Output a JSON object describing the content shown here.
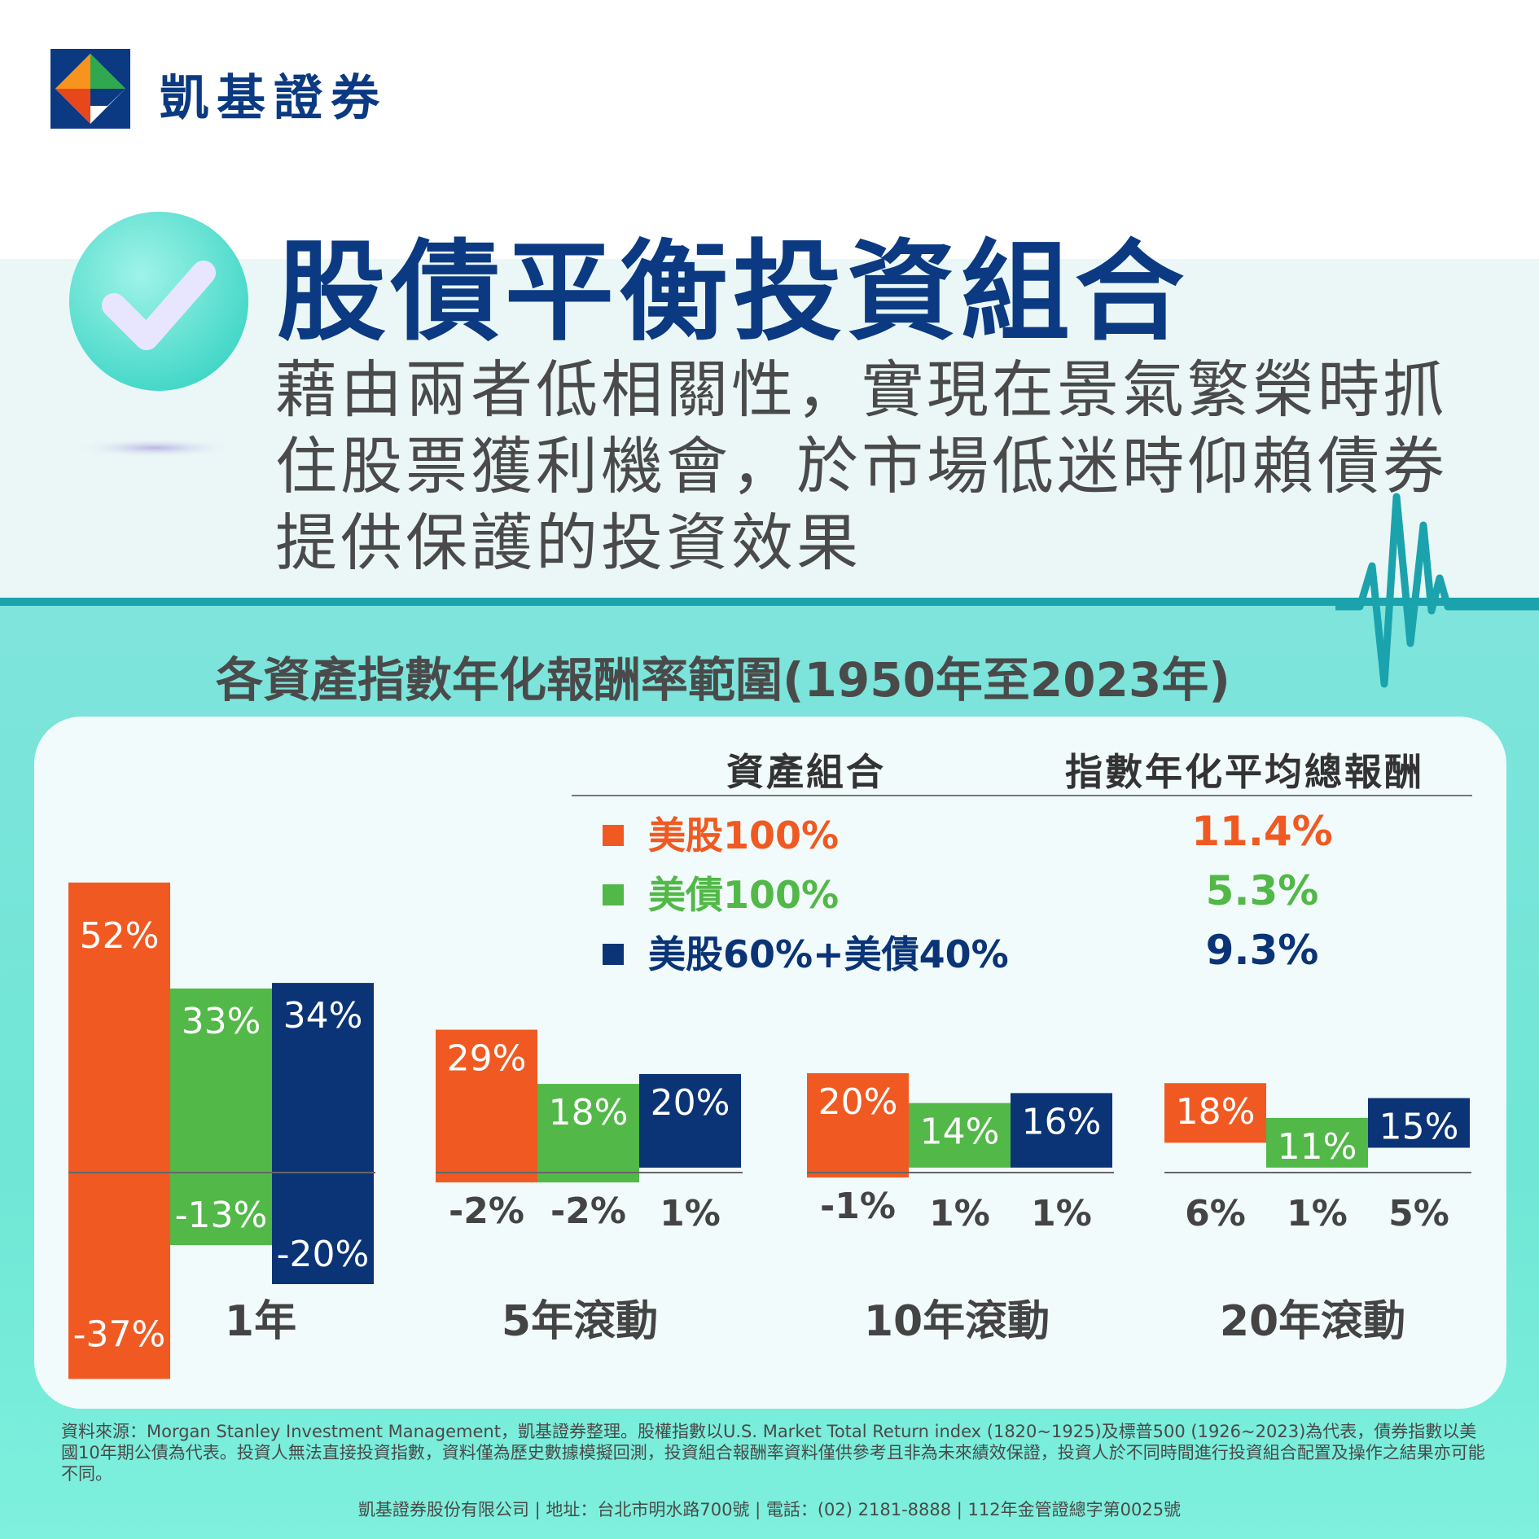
{
  "header": {
    "brand": "凱基證券",
    "title": "股債平衡投資組合",
    "subtitle": "藉由兩者低相關性，實現在景氣繁榮時抓住股票獲利機會，於市場低迷時仰賴債券提供保護的投資效果"
  },
  "legend": {
    "col_asset": "資產組合",
    "col_return": "指數年化平均總報酬",
    "rows": [
      {
        "label": "美股100%",
        "value": "11.4%",
        "color": "#f05a22"
      },
      {
        "label": "美債100%",
        "value": "5.3%",
        "color": "#52b848"
      },
      {
        "label": "美股60%+美債40%",
        "value": "9.3%",
        "color": "#0b3477"
      }
    ]
  },
  "chart_data": {
    "type": "bar",
    "title": "各資產指數年化報酬率範圍(1950年至2023年)",
    "categories": [
      "1年",
      "5年滾動",
      "10年滾動",
      "20年滾動"
    ],
    "series": [
      {
        "name": "美股100%",
        "color": "#f05a22",
        "max": [
          52,
          29,
          20,
          18
        ],
        "min": [
          -37,
          -2,
          -1,
          6
        ],
        "max_labels": [
          "52%",
          "29%",
          "20%",
          "18%"
        ],
        "min_labels": [
          "-37%",
          "-2%",
          "-1%",
          "6%"
        ]
      },
      {
        "name": "美債100%",
        "color": "#52b848",
        "max": [
          33,
          18,
          14,
          11
        ],
        "min": [
          -13,
          -2,
          1,
          1
        ],
        "max_labels": [
          "33%",
          "18%",
          "14%",
          "11%"
        ],
        "min_labels": [
          "-13%",
          "-2%",
          "1%",
          "1%"
        ]
      },
      {
        "name": "美股60%+美債40%",
        "color": "#0b3477",
        "max": [
          34,
          20,
          16,
          15
        ],
        "min": [
          -20,
          1,
          1,
          5
        ],
        "max_labels": [
          "34%",
          "20%",
          "16%",
          "15%"
        ],
        "min_labels": [
          "-20%",
          "1%",
          "1%",
          "5%"
        ]
      }
    ]
  },
  "footnote": "資料來源：Morgan Stanley Investment Management，凱基證券整理。股權指數以U.S. Market Total Return index (1820~1925)及標普500 (1926~2023)為代表，債券指數以美國10年期公債為代表。投資人無法直接投資指數，資料僅為歷史數據模擬回測，投資組合報酬率資料僅供參考且非為未來績效保證，投資人於不同時間進行投資組合配置及操作之結果亦可能不同。",
  "footer": "凱基證券股份有限公司 | 地址：台北市明水路700號 | 電話：(02) 2181-8888 | 112年金管證總字第0025號"
}
